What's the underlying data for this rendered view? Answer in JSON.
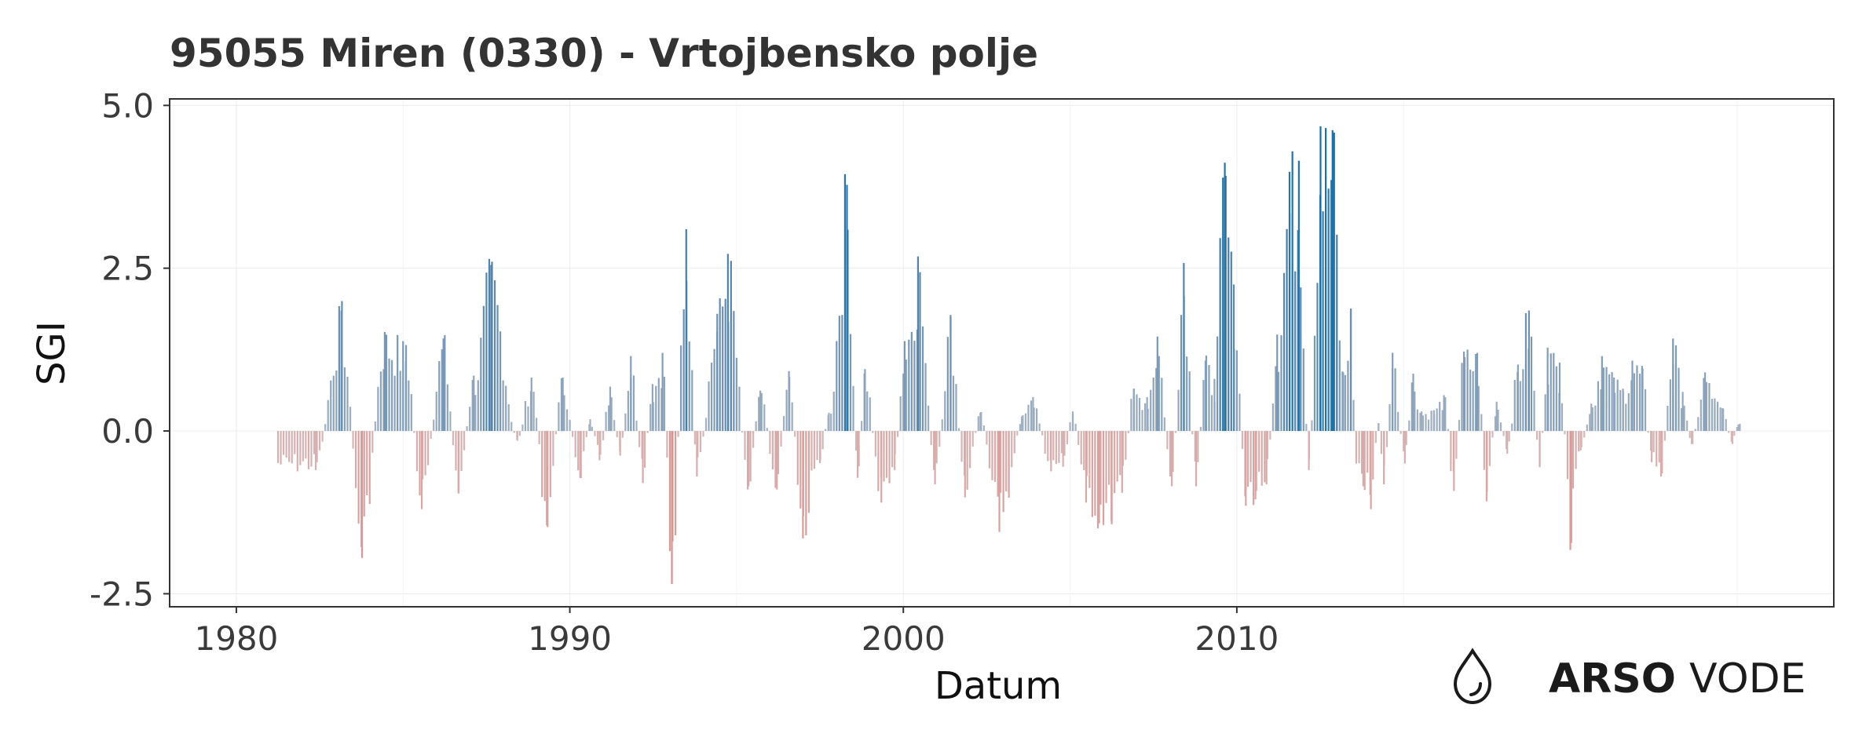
{
  "title": "95055 Miren (0330) - Vrtojbensko polje",
  "logo": {
    "icon": "water-drop-icon",
    "brand_bold": "ARSO",
    "brand_light": "VODE"
  },
  "colors": {
    "positive_light": "#a8b4c4",
    "positive_mid": "#5e88ad",
    "positive_strong": "#1a6fa6",
    "negative_light": "#d6b9b9",
    "negative_strong": "#d9928f",
    "frame": "#333333"
  },
  "chart_data": {
    "type": "bar",
    "title": "95055 Miren (0330) - Vrtojbensko polje",
    "xlabel": "Datum",
    "ylabel": "SGI",
    "x_ticks": [
      "1980",
      "1990",
      "2000",
      "2010"
    ],
    "y_ticks": [
      "5.0",
      "2.5",
      "0.0",
      "-2.5"
    ],
    "xlim": [
      1978.0,
      2027.9
    ],
    "ylim": [
      -2.7,
      5.1
    ],
    "grid": true,
    "legend": "none",
    "series": [
      {
        "x": [
          1982.38,
          1983.15,
          1983.77,
          1984.45,
          1985.09,
          1985.56,
          1986.21,
          1986.66,
          1987.12,
          1987.64,
          1988.43,
          1988.85,
          1989.31,
          1989.79,
          1990.31,
          1990.61,
          1990.89,
          1991.21,
          1991.51,
          1991.83,
          1992.19,
          1992.48,
          1992.78,
          1993.06,
          1993.49,
          1993.81,
          1994.42,
          1994.74,
          1995.36,
          1995.71,
          1996.21,
          1996.57,
          1996.99,
          1997.51,
          1997.77,
          1998.31,
          1998.63,
          1998.85,
          1999.34,
          1999.74,
          2000.04,
          2000.44,
          2000.95,
          2001.42,
          2001.85,
          2002.31,
          2002.88,
          2003.16,
          2003.55,
          2003.89,
          2004.43,
          2004.79,
          2005.08,
          2005.48,
          2005.87,
          2006.24,
          2006.56,
          2006.91,
          2007.31,
          2007.62,
          2008.05,
          2008.41,
          2008.78,
          2009.06,
          2009.33,
          2009.64,
          2009.91,
          2010.27,
          2010.56,
          2010.89,
          2011.21,
          2011.58,
          2011.86,
          2012.16,
          2012.51,
          2012.87,
          2013.19,
          2013.42,
          2013.58,
          2013.79,
          2014.02,
          2014.25,
          2014.41,
          2014.67,
          2015.04,
          2015.29,
          2015.54,
          2015.91,
          2016.21,
          2016.51,
          2016.81,
          2017.21,
          2017.49,
          2017.79,
          2018.11,
          2018.43,
          2018.76,
          2019.08,
          2019.32,
          2019.68,
          2020.03,
          2020.31,
          2020.63,
          2020.95,
          2021.31,
          2021.58,
          2021.86,
          2022.15,
          2022.44,
          2022.72,
          2023.08,
          2023.37,
          2023.64,
          2024.04,
          2024.33,
          2024.56,
          2024.86,
          2025.04
        ],
        "y": [
          -0.6,
          1.85,
          -1.95,
          1.52,
          1.32,
          -1.2,
          1.42,
          -0.95,
          0.85,
          2.55,
          -0.15,
          0.82,
          -1.45,
          0.82,
          -0.72,
          0.18,
          -0.45,
          0.68,
          -0.38,
          1.15,
          -0.8,
          0.72,
          1.2,
          -2.35,
          3.1,
          -0.7,
          1.8,
          2.72,
          -0.85,
          0.62,
          -0.9,
          0.92,
          -1.65,
          -0.45,
          0.28,
          3.78,
          -0.72,
          0.95,
          -1.1,
          -0.6,
          1.38,
          2.68,
          -0.82,
          1.75,
          -1.02,
          0.28,
          -1.55,
          -0.95,
          0.22,
          0.52,
          -0.62,
          -0.55,
          0.3,
          -1.1,
          -1.42,
          -1.38,
          -0.95,
          0.65,
          0.52,
          1.45,
          -0.85,
          2.58,
          -0.85,
          1.08,
          0.8,
          4.12,
          2.25,
          -1.15,
          -1.05,
          -0.82,
          1.48,
          3.98,
          4.15,
          -0.6,
          4.68,
          4.62,
          0.9,
          1.88,
          -0.5,
          -0.85,
          -1.2,
          0.12,
          -0.82,
          1.2,
          -0.5,
          0.88,
          0.3,
          0.32,
          0.55,
          -0.92,
          1.22,
          1.2,
          -1.08,
          0.45,
          -0.35,
          1.02,
          1.85,
          -0.55,
          1.28,
          1.05,
          -1.72,
          -0.3,
          0.42,
          1.15,
          0.82,
          0.65,
          1.08,
          1.0,
          -0.48,
          -0.7,
          1.42,
          0.6,
          -0.2,
          0.9,
          0.5,
          0.35,
          -0.2,
          0.1
        ]
      }
    ]
  }
}
